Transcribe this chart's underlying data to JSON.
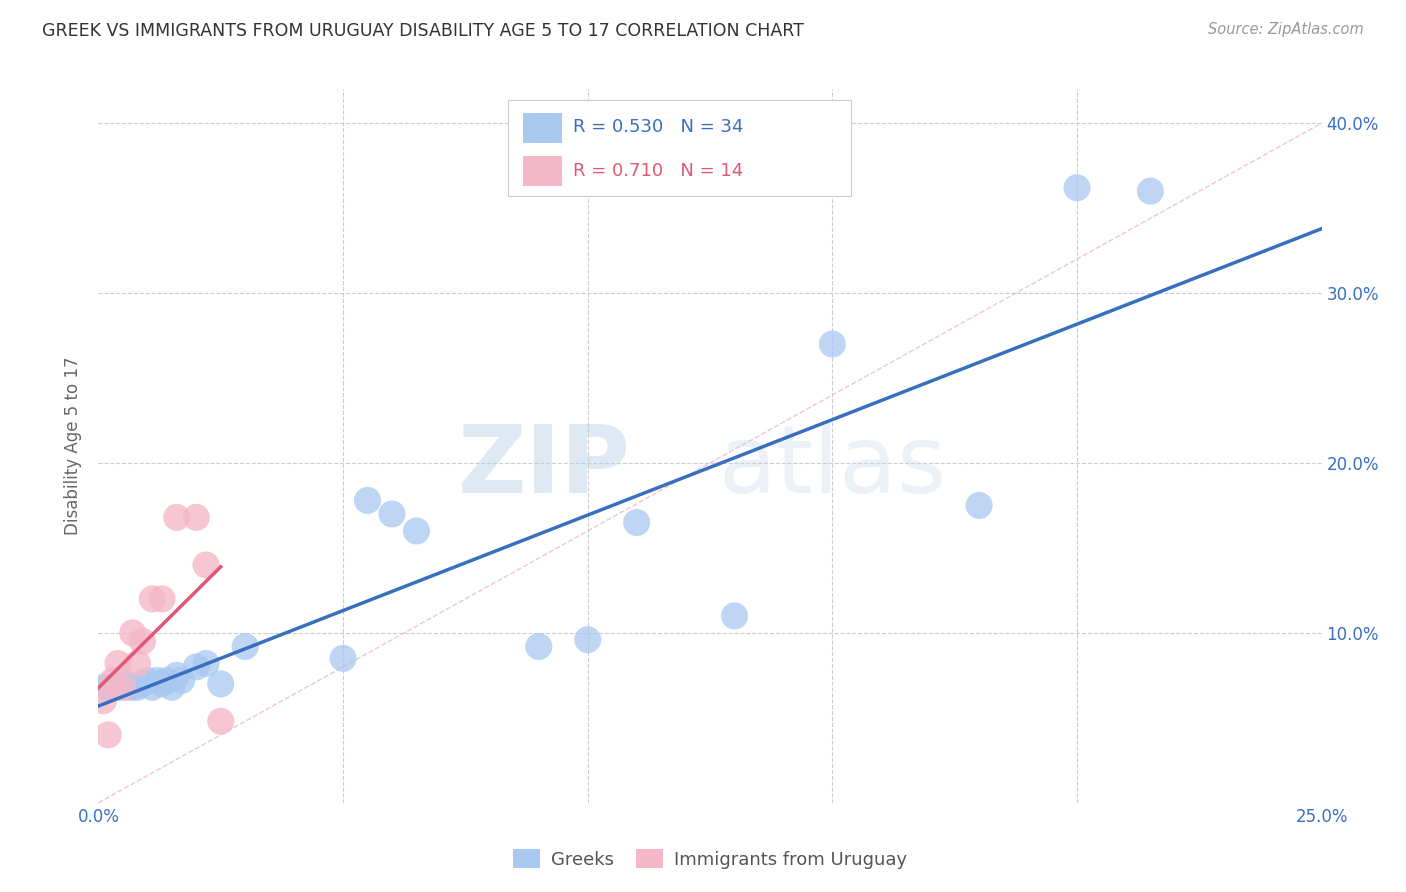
{
  "title": "GREEK VS IMMIGRANTS FROM URUGUAY DISABILITY AGE 5 TO 17 CORRELATION CHART",
  "source": "Source: ZipAtlas.com",
  "ylabel_label": "Disability Age 5 to 17",
  "xmin": 0.0,
  "xmax": 0.25,
  "ymin": 0.0,
  "ymax": 0.42,
  "greek_color": "#a8c8ef",
  "uruguay_color": "#f5b8c8",
  "greek_line_color": "#3a6fbf",
  "uruguay_line_color": "#e05878",
  "greek_R": 0.53,
  "greek_N": 34,
  "uruguay_R": 0.71,
  "uruguay_N": 14,
  "greeks_x": [
    0.001,
    0.002,
    0.003,
    0.004,
    0.005,
    0.005,
    0.006,
    0.007,
    0.008,
    0.009,
    0.01,
    0.011,
    0.012,
    0.013,
    0.014,
    0.015,
    0.016,
    0.017,
    0.02,
    0.022,
    0.025,
    0.03,
    0.05,
    0.055,
    0.06,
    0.065,
    0.09,
    0.1,
    0.11,
    0.13,
    0.15,
    0.18,
    0.2,
    0.215
  ],
  "greeks_y": [
    0.068,
    0.068,
    0.068,
    0.068,
    0.068,
    0.072,
    0.068,
    0.068,
    0.068,
    0.07,
    0.072,
    0.068,
    0.072,
    0.07,
    0.072,
    0.068,
    0.075,
    0.072,
    0.08,
    0.082,
    0.07,
    0.092,
    0.085,
    0.178,
    0.17,
    0.16,
    0.092,
    0.096,
    0.165,
    0.11,
    0.27,
    0.175,
    0.362,
    0.36
  ],
  "uruguay_x": [
    0.001,
    0.002,
    0.003,
    0.004,
    0.005,
    0.007,
    0.008,
    0.009,
    0.011,
    0.013,
    0.016,
    0.02,
    0.022,
    0.025
  ],
  "uruguay_y": [
    0.06,
    0.04,
    0.072,
    0.082,
    0.068,
    0.1,
    0.082,
    0.095,
    0.12,
    0.12,
    0.168,
    0.168,
    0.14,
    0.048
  ],
  "watermark_zip": "ZIP",
  "watermark_atlas": "atlas",
  "background_color": "#ffffff",
  "grid_color": "#cccccc",
  "diagonal_color": "#e8b0b8"
}
